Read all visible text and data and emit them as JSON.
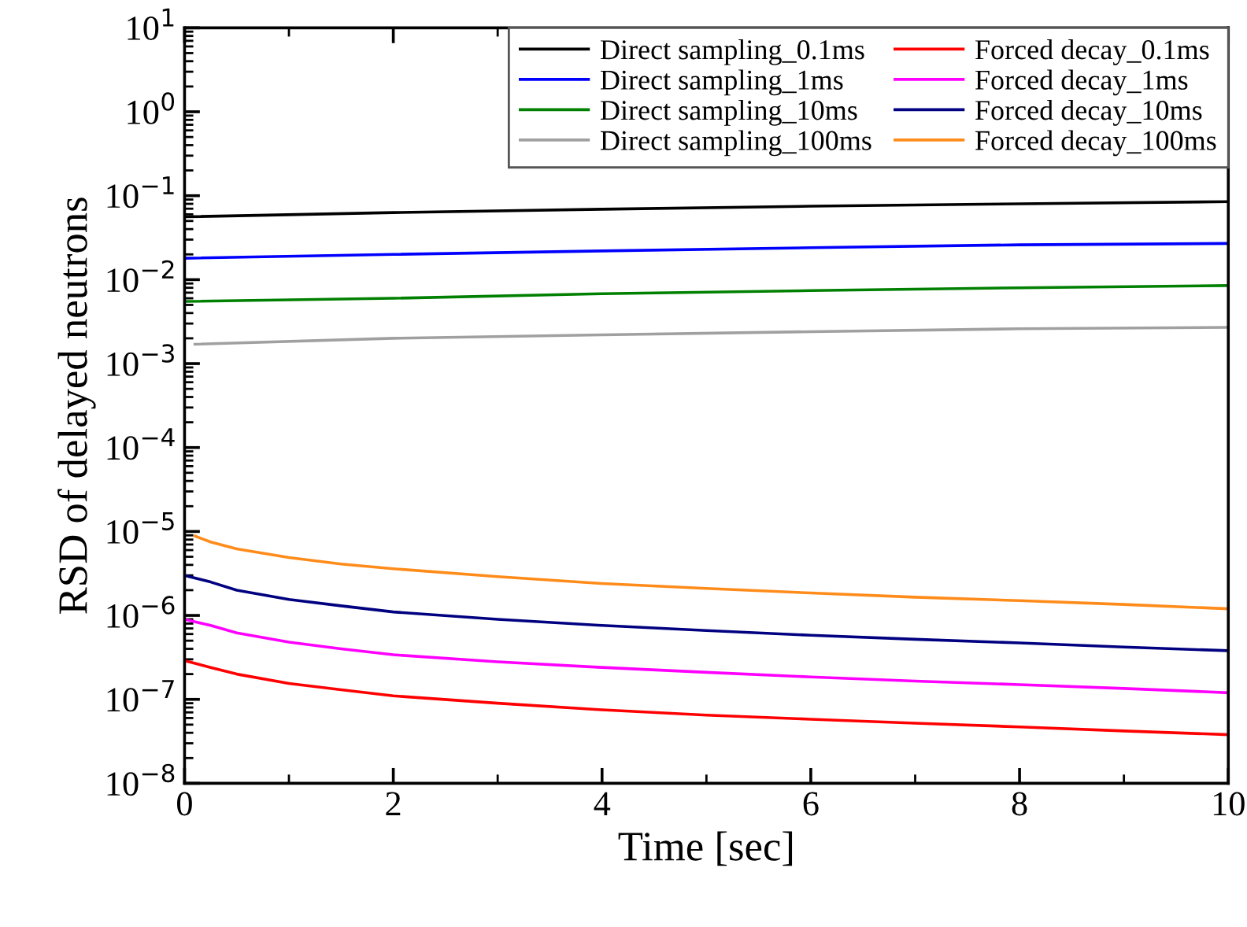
{
  "chart_data": {
    "type": "line",
    "xlabel": "Time [sec]",
    "ylabel": "RSD of delayed neutrons",
    "log": "y",
    "xlim": [
      0,
      10
    ],
    "xticks": [
      0,
      2,
      4,
      6,
      8,
      10
    ],
    "ylim": [
      1e-08,
      10
    ],
    "yticks": [
      {
        "value": 1e-08,
        "label": "10$^{−8}$"
      },
      {
        "value": 1e-07,
        "label": "10$^{−7}$"
      },
      {
        "value": 1e-06,
        "label": "10$^{−6}$"
      },
      {
        "value": 1e-05,
        "label": "10$^{−5}$"
      },
      {
        "value": 0.0001,
        "label": "10$^{−4}$"
      },
      {
        "value": 0.001,
        "label": "10$^{−3}$"
      },
      {
        "value": 0.01,
        "label": "10$^{−2}$"
      },
      {
        "value": 0.1,
        "label": "10$^{−1}$"
      },
      {
        "value": 1,
        "label": "10$^{0}$"
      },
      {
        "value": 10,
        "label": "10$^{1}$"
      }
    ],
    "grid": false,
    "legend": "top right",
    "marker": "none",
    "line_style": "solid",
    "series": [
      {
        "name": "Direct sampling_0.1ms",
        "color": "#000000",
        "x": [
          0,
          2,
          4,
          6,
          8,
          10
        ],
        "values": [
          0.056,
          0.063,
          0.069,
          0.075,
          0.08,
          0.085
        ]
      },
      {
        "name": "Direct sampling_1ms",
        "color": "#0000ff",
        "x": [
          0,
          2,
          4,
          6,
          8,
          10
        ],
        "values": [
          0.018,
          0.02,
          0.022,
          0.024,
          0.026,
          0.027
        ]
      },
      {
        "name": "Direct sampling_10ms",
        "color": "#008000",
        "x": [
          0,
          2,
          4,
          6,
          8,
          10
        ],
        "values": [
          0.0055,
          0.006,
          0.0068,
          0.0074,
          0.008,
          0.0085
        ]
      },
      {
        "name": "Direct sampling_100ms",
        "color": "#a0a0a0",
        "x": [
          0.1,
          2,
          4,
          6,
          8,
          10
        ],
        "values": [
          0.0017,
          0.002,
          0.0022,
          0.0024,
          0.0026,
          0.0027
        ]
      },
      {
        "name": "Forced decay_0.1ms",
        "color": "#ff0000",
        "x": [
          0,
          0.25,
          0.5,
          1,
          1.5,
          2,
          3,
          4,
          5,
          6,
          7,
          8,
          9,
          10
        ],
        "values": [
          2.9e-07,
          2.4e-07,
          2e-07,
          1.55e-07,
          1.3e-07,
          1.1e-07,
          9e-08,
          7.5e-08,
          6.5e-08,
          5.8e-08,
          5.2e-08,
          4.7e-08,
          4.2e-08,
          3.8e-08
        ]
      },
      {
        "name": "Forced decay_1ms",
        "color": "#ff00ff",
        "x": [
          0,
          0.25,
          0.5,
          1,
          1.5,
          2,
          3,
          4,
          5,
          6,
          7,
          8,
          9,
          10
        ],
        "values": [
          9e-07,
          7.6e-07,
          6.2e-07,
          4.8e-07,
          4e-07,
          3.4e-07,
          2.8e-07,
          2.4e-07,
          2.1e-07,
          1.85e-07,
          1.65e-07,
          1.5e-07,
          1.35e-07,
          1.2e-07
        ]
      },
      {
        "name": "Forced decay_10ms",
        "color": "#000080",
        "x": [
          0,
          0.25,
          0.5,
          1,
          1.5,
          2,
          3,
          4,
          5,
          6,
          7,
          8,
          9,
          10
        ],
        "values": [
          3e-06,
          2.5e-06,
          2e-06,
          1.55e-06,
          1.3e-06,
          1.1e-06,
          9e-07,
          7.6e-07,
          6.6e-07,
          5.8e-07,
          5.2e-07,
          4.7e-07,
          4.2e-07,
          3.8e-07
        ]
      },
      {
        "name": "Forced decay_100ms",
        "color": "#ff8c1a",
        "x": [
          0.1,
          0.25,
          0.5,
          1,
          1.5,
          2,
          3,
          4,
          5,
          6,
          7,
          8,
          9,
          10
        ],
        "values": [
          8.8e-06,
          7.5e-06,
          6.2e-06,
          4.9e-06,
          4.1e-06,
          3.6e-06,
          2.9e-06,
          2.4e-06,
          2.1e-06,
          1.85e-06,
          1.65e-06,
          1.5e-06,
          1.35e-06,
          1.2e-06
        ]
      }
    ]
  }
}
